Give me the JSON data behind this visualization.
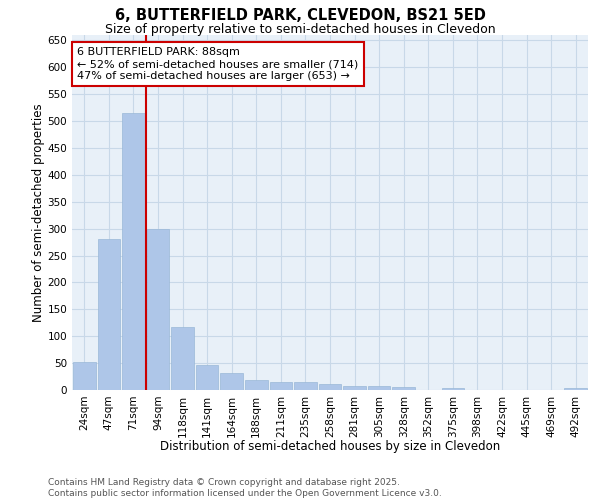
{
  "title1": "6, BUTTERFIELD PARK, CLEVEDON, BS21 5ED",
  "title2": "Size of property relative to semi-detached houses in Clevedon",
  "xlabel": "Distribution of semi-detached houses by size in Clevedon",
  "ylabel": "Number of semi-detached properties",
  "bar_labels": [
    "24sqm",
    "47sqm",
    "71sqm",
    "94sqm",
    "118sqm",
    "141sqm",
    "164sqm",
    "188sqm",
    "211sqm",
    "235sqm",
    "258sqm",
    "281sqm",
    "305sqm",
    "328sqm",
    "352sqm",
    "375sqm",
    "398sqm",
    "422sqm",
    "445sqm",
    "469sqm",
    "492sqm"
  ],
  "bar_values": [
    52,
    280,
    515,
    300,
    118,
    46,
    32,
    19,
    14,
    14,
    12,
    8,
    8,
    5,
    0,
    4,
    0,
    0,
    0,
    0,
    4
  ],
  "bar_color": "#aec6e8",
  "bar_edge_color": "#9ab8d8",
  "vline_color": "#cc0000",
  "annotation_line1": "6 BUTTERFIELD PARK: 88sqm",
  "annotation_line2": "← 52% of semi-detached houses are smaller (714)",
  "annotation_line3": "47% of semi-detached houses are larger (653) →",
  "annotation_box_color": "#ffffff",
  "annotation_box_edge": "#cc0000",
  "ylim": [
    0,
    660
  ],
  "yticks": [
    0,
    50,
    100,
    150,
    200,
    250,
    300,
    350,
    400,
    450,
    500,
    550,
    600,
    650
  ],
  "grid_color": "#c8d8e8",
  "background_color": "#e8f0f8",
  "footer_text": "Contains HM Land Registry data © Crown copyright and database right 2025.\nContains public sector information licensed under the Open Government Licence v3.0.",
  "title1_fontsize": 10.5,
  "title2_fontsize": 9,
  "xlabel_fontsize": 8.5,
  "ylabel_fontsize": 8.5,
  "tick_fontsize": 7.5,
  "annotation_fontsize": 8,
  "footer_fontsize": 6.5
}
